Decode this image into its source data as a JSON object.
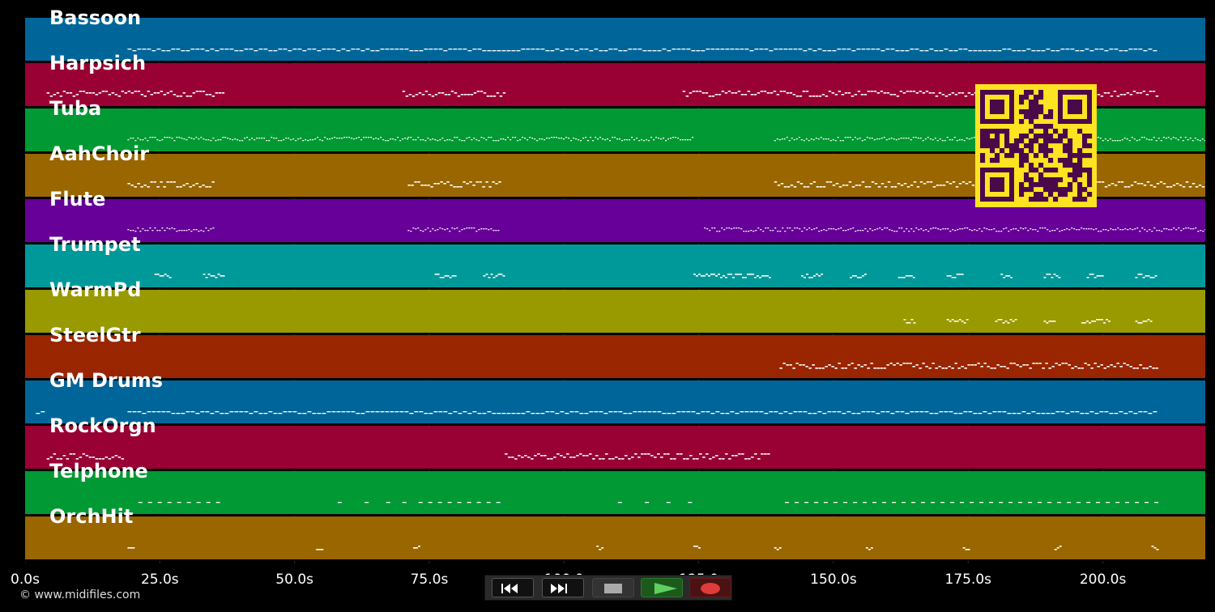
{
  "app": {
    "copyright": "© www.midifiles.com"
  },
  "timeline": {
    "max_seconds": 219,
    "ticks": [
      "0.0s",
      "25.0s",
      "50.0s",
      "75.0s",
      "100.0",
      "125.0",
      "150.0s",
      "175.0s",
      "200.0s"
    ],
    "tick_values": [
      0,
      25,
      50,
      75,
      100,
      125,
      150,
      175,
      200
    ]
  },
  "tracks": [
    {
      "name": "Bassoon",
      "color": "#00669a",
      "style": "line",
      "segments": [
        [
          19,
          210
        ]
      ]
    },
    {
      "name": "Harpsich",
      "color": "#990033",
      "style": "dense",
      "segments": [
        [
          4,
          37
        ],
        [
          70,
          89
        ],
        [
          122,
          210
        ]
      ]
    },
    {
      "name": "Tuba",
      "color": "#009933",
      "style": "dots",
      "segments": [
        [
          19,
          37
        ],
        [
          37,
          71
        ],
        [
          71,
          89
        ],
        [
          89,
          124
        ],
        [
          139,
          219
        ]
      ]
    },
    {
      "name": "AahChoir",
      "color": "#996600",
      "style": "dense",
      "segments": [
        [
          19,
          35
        ],
        [
          71,
          88
        ],
        [
          139,
          219
        ]
      ]
    },
    {
      "name": "Flute",
      "color": "#660099",
      "style": "dots",
      "segments": [
        [
          19,
          35
        ],
        [
          71,
          88
        ],
        [
          126,
          219
        ]
      ]
    },
    {
      "name": "Trumpet",
      "color": "#009999",
      "style": "blips",
      "segments": [
        [
          24,
          27
        ],
        [
          33,
          37
        ],
        [
          76,
          80
        ],
        [
          85,
          89
        ],
        [
          124,
          138
        ],
        [
          144,
          148
        ],
        [
          153,
          156
        ],
        [
          162,
          165
        ],
        [
          171,
          174
        ],
        [
          181,
          183
        ],
        [
          189,
          192
        ],
        [
          197,
          200
        ],
        [
          206,
          210
        ]
      ]
    },
    {
      "name": "WarmPd",
      "color": "#999900",
      "style": "blips",
      "segments": [
        [
          163,
          165
        ],
        [
          171,
          175
        ],
        [
          180,
          184
        ],
        [
          189,
          191
        ],
        [
          196,
          201
        ],
        [
          206,
          209
        ]
      ]
    },
    {
      "name": "SteelGtr",
      "color": "#992600",
      "style": "dense",
      "segments": [
        [
          140,
          210
        ]
      ]
    },
    {
      "name": "GM Drums",
      "color": "#00669a",
      "style": "line",
      "segments": [
        [
          2,
          3
        ],
        [
          19,
          210
        ]
      ]
    },
    {
      "name": "RockOrgn",
      "color": "#990033",
      "style": "dense",
      "segments": [
        [
          4,
          18
        ],
        [
          89,
          138
        ]
      ]
    },
    {
      "name": "Telphone",
      "color": "#009933",
      "style": "dash",
      "segments": [
        [
          21,
          37
        ],
        [
          58,
          59
        ],
        [
          63,
          64
        ],
        [
          67,
          68
        ],
        [
          70,
          71
        ],
        [
          73,
          89
        ],
        [
          110,
          111
        ],
        [
          115,
          116
        ],
        [
          119,
          120
        ],
        [
          123,
          124
        ],
        [
          141,
          210
        ]
      ]
    },
    {
      "name": "OrchHit",
      "color": "#996600",
      "style": "blips",
      "segments": [
        [
          19,
          20
        ],
        [
          54,
          55
        ],
        [
          72,
          73
        ],
        [
          106,
          107
        ],
        [
          124,
          125
        ],
        [
          139,
          140
        ],
        [
          156,
          157
        ],
        [
          174,
          175
        ],
        [
          191,
          192
        ],
        [
          209,
          210
        ]
      ]
    }
  ],
  "transport": {
    "rewind_icon": "rewind-icon",
    "fast_forward_icon": "fast-forward-icon",
    "stop_icon": "stop-icon",
    "play_icon": "play-icon",
    "record_icon": "record-icon"
  },
  "overlay": {
    "qr_icon": "qr-code-icon"
  }
}
